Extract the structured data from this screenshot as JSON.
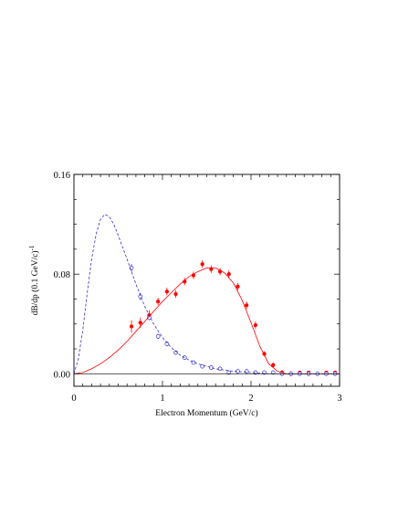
{
  "chart_data": {
    "type": "scatter",
    "xlabel": "Electron Momentum  (GeV/c)",
    "ylabel": "dB/dp  (0.1 GeV/c)",
    "ylabel_sup": "-1",
    "xlim": [
      0,
      3
    ],
    "ylim": [
      -0.01,
      0.16
    ],
    "x_ticks": [
      "0",
      "1",
      "2",
      "3"
    ],
    "y_ticks": [
      "0.00",
      "0.08",
      "0.16"
    ],
    "grid": false,
    "colors": {
      "primary": "#ff0000",
      "secondary": "#3333cc",
      "axis": "#000000"
    },
    "series": [
      {
        "style": "filled-points-with-errors",
        "color": "#ff0000",
        "x": [
          0.65,
          0.75,
          0.85,
          0.95,
          1.05,
          1.15,
          1.25,
          1.35,
          1.45,
          1.55,
          1.65,
          1.75,
          1.85,
          1.95,
          2.05,
          2.15,
          2.25,
          2.35,
          2.45,
          2.55,
          2.65,
          2.75,
          2.85,
          2.95
        ],
        "y": [
          0.038,
          0.041,
          0.047,
          0.058,
          0.066,
          0.064,
          0.074,
          0.079,
          0.088,
          0.084,
          0.082,
          0.08,
          0.07,
          0.055,
          0.039,
          0.016,
          0.007,
          0.001,
          0.0,
          0.001,
          0.001,
          0.0,
          0.001,
          0.001
        ],
        "err": [
          0.005,
          0.004,
          0.004,
          0.003,
          0.003,
          0.003,
          0.003,
          0.003,
          0.003,
          0.003,
          0.003,
          0.003,
          0.003,
          0.003,
          0.003,
          0.002,
          0.002,
          0.002,
          0.002,
          0.001,
          0.001,
          0.001,
          0.001,
          0.001
        ]
      },
      {
        "style": "open-points",
        "color": "#3333cc",
        "x": [
          0.65,
          0.75,
          0.85,
          0.95,
          1.05,
          1.15,
          1.25,
          1.35,
          1.45,
          1.55,
          1.65,
          1.75,
          1.85,
          1.95,
          2.05,
          2.15,
          2.25,
          2.35,
          2.45,
          2.55,
          2.65,
          2.75,
          2.85,
          2.95
        ],
        "y": [
          0.085,
          0.062,
          0.045,
          0.03,
          0.024,
          0.017,
          0.013,
          0.009,
          0.006,
          0.005,
          0.004,
          0.001,
          0.002,
          0.002,
          0.001,
          0.001,
          0.001,
          0.0,
          0.0,
          0.0,
          0.0,
          0.0,
          0.0,
          0.0
        ],
        "err": [
          0.003,
          0.003,
          0.002,
          0.002,
          0.002,
          0.001,
          0.001,
          0.001,
          0.001,
          0.001,
          0.001,
          0.001,
          0.001,
          0.001,
          0.001,
          0.001,
          0.001,
          0.001,
          0.001,
          0.001,
          0.001,
          0.001,
          0.001,
          0.001
        ]
      },
      {
        "style": "solid-line",
        "color": "#ff0000",
        "x": [
          0,
          0.1,
          0.2,
          0.3,
          0.4,
          0.5,
          0.6,
          0.7,
          0.8,
          0.9,
          1.0,
          1.1,
          1.2,
          1.3,
          1.4,
          1.5,
          1.6,
          1.7,
          1.8,
          1.9,
          2.0,
          2.1,
          2.2,
          2.3,
          2.4,
          2.5,
          3.0
        ],
        "y": [
          0.0,
          0.001,
          0.004,
          0.008,
          0.013,
          0.019,
          0.026,
          0.034,
          0.042,
          0.05,
          0.058,
          0.065,
          0.072,
          0.078,
          0.082,
          0.085,
          0.085,
          0.081,
          0.073,
          0.059,
          0.041,
          0.022,
          0.008,
          0.002,
          0.0,
          0.0,
          0.0
        ]
      },
      {
        "style": "dashed-line",
        "color": "#3333cc",
        "x": [
          0,
          0.05,
          0.1,
          0.15,
          0.2,
          0.25,
          0.3,
          0.35,
          0.4,
          0.45,
          0.5,
          0.6,
          0.7,
          0.8,
          0.9,
          1.0,
          1.1,
          1.2,
          1.3,
          1.4,
          1.5,
          1.6,
          1.8,
          2.0,
          2.2,
          2.5,
          3.0
        ],
        "y": [
          0.0,
          0.012,
          0.035,
          0.065,
          0.092,
          0.112,
          0.124,
          0.128,
          0.126,
          0.12,
          0.111,
          0.092,
          0.072,
          0.054,
          0.04,
          0.029,
          0.021,
          0.015,
          0.011,
          0.008,
          0.006,
          0.004,
          0.002,
          0.001,
          0.0,
          0.0,
          0.0
        ]
      }
    ]
  }
}
